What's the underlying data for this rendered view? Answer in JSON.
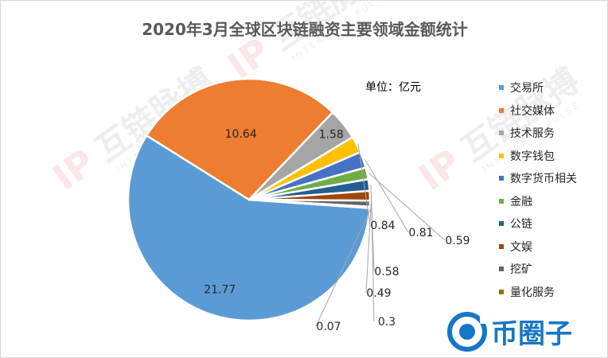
{
  "chart_data": {
    "type": "pie",
    "title": "2020年3月全球区块链融资主要领域金额统计",
    "unit_label": "单位：亿元",
    "legend_position": "right",
    "slices": [
      {
        "label": "交易所",
        "value": 21.77,
        "value_label": "21.77",
        "color": "#5b9bd5"
      },
      {
        "label": "社交媒体",
        "value": 10.64,
        "value_label": "10.64",
        "color": "#ed7d31"
      },
      {
        "label": "技术服务",
        "value": 1.58,
        "value_label": "1.58",
        "color": "#a5a5a5"
      },
      {
        "label": "数字钱包",
        "value": 0.84,
        "value_label": "0.84",
        "color": "#ffc000"
      },
      {
        "label": "数字货币相关",
        "value": 0.81,
        "value_label": "0.81",
        "color": "#4472c4"
      },
      {
        "label": "金融",
        "value": 0.59,
        "value_label": "0.59",
        "color": "#70ad47"
      },
      {
        "label": "公链",
        "value": 0.58,
        "value_label": "0.58",
        "color": "#255e91"
      },
      {
        "label": "文娱",
        "value": 0.49,
        "value_label": "0.49",
        "color": "#9e480e"
      },
      {
        "label": "挖矿",
        "value": 0.3,
        "value_label": "0.3",
        "color": "#636363"
      },
      {
        "label": "量化服务",
        "value": 0.07,
        "value_label": "0.07",
        "color": "#997300"
      }
    ]
  },
  "watermark": {
    "text_cn": "互链脉搏",
    "text_en": "INTERCHAN PULSE",
    "icon": "ip-logo-icon"
  },
  "brand": {
    "text": "币圈子",
    "icon": "bitcoin-circle-icon",
    "color": "#1677c8"
  }
}
